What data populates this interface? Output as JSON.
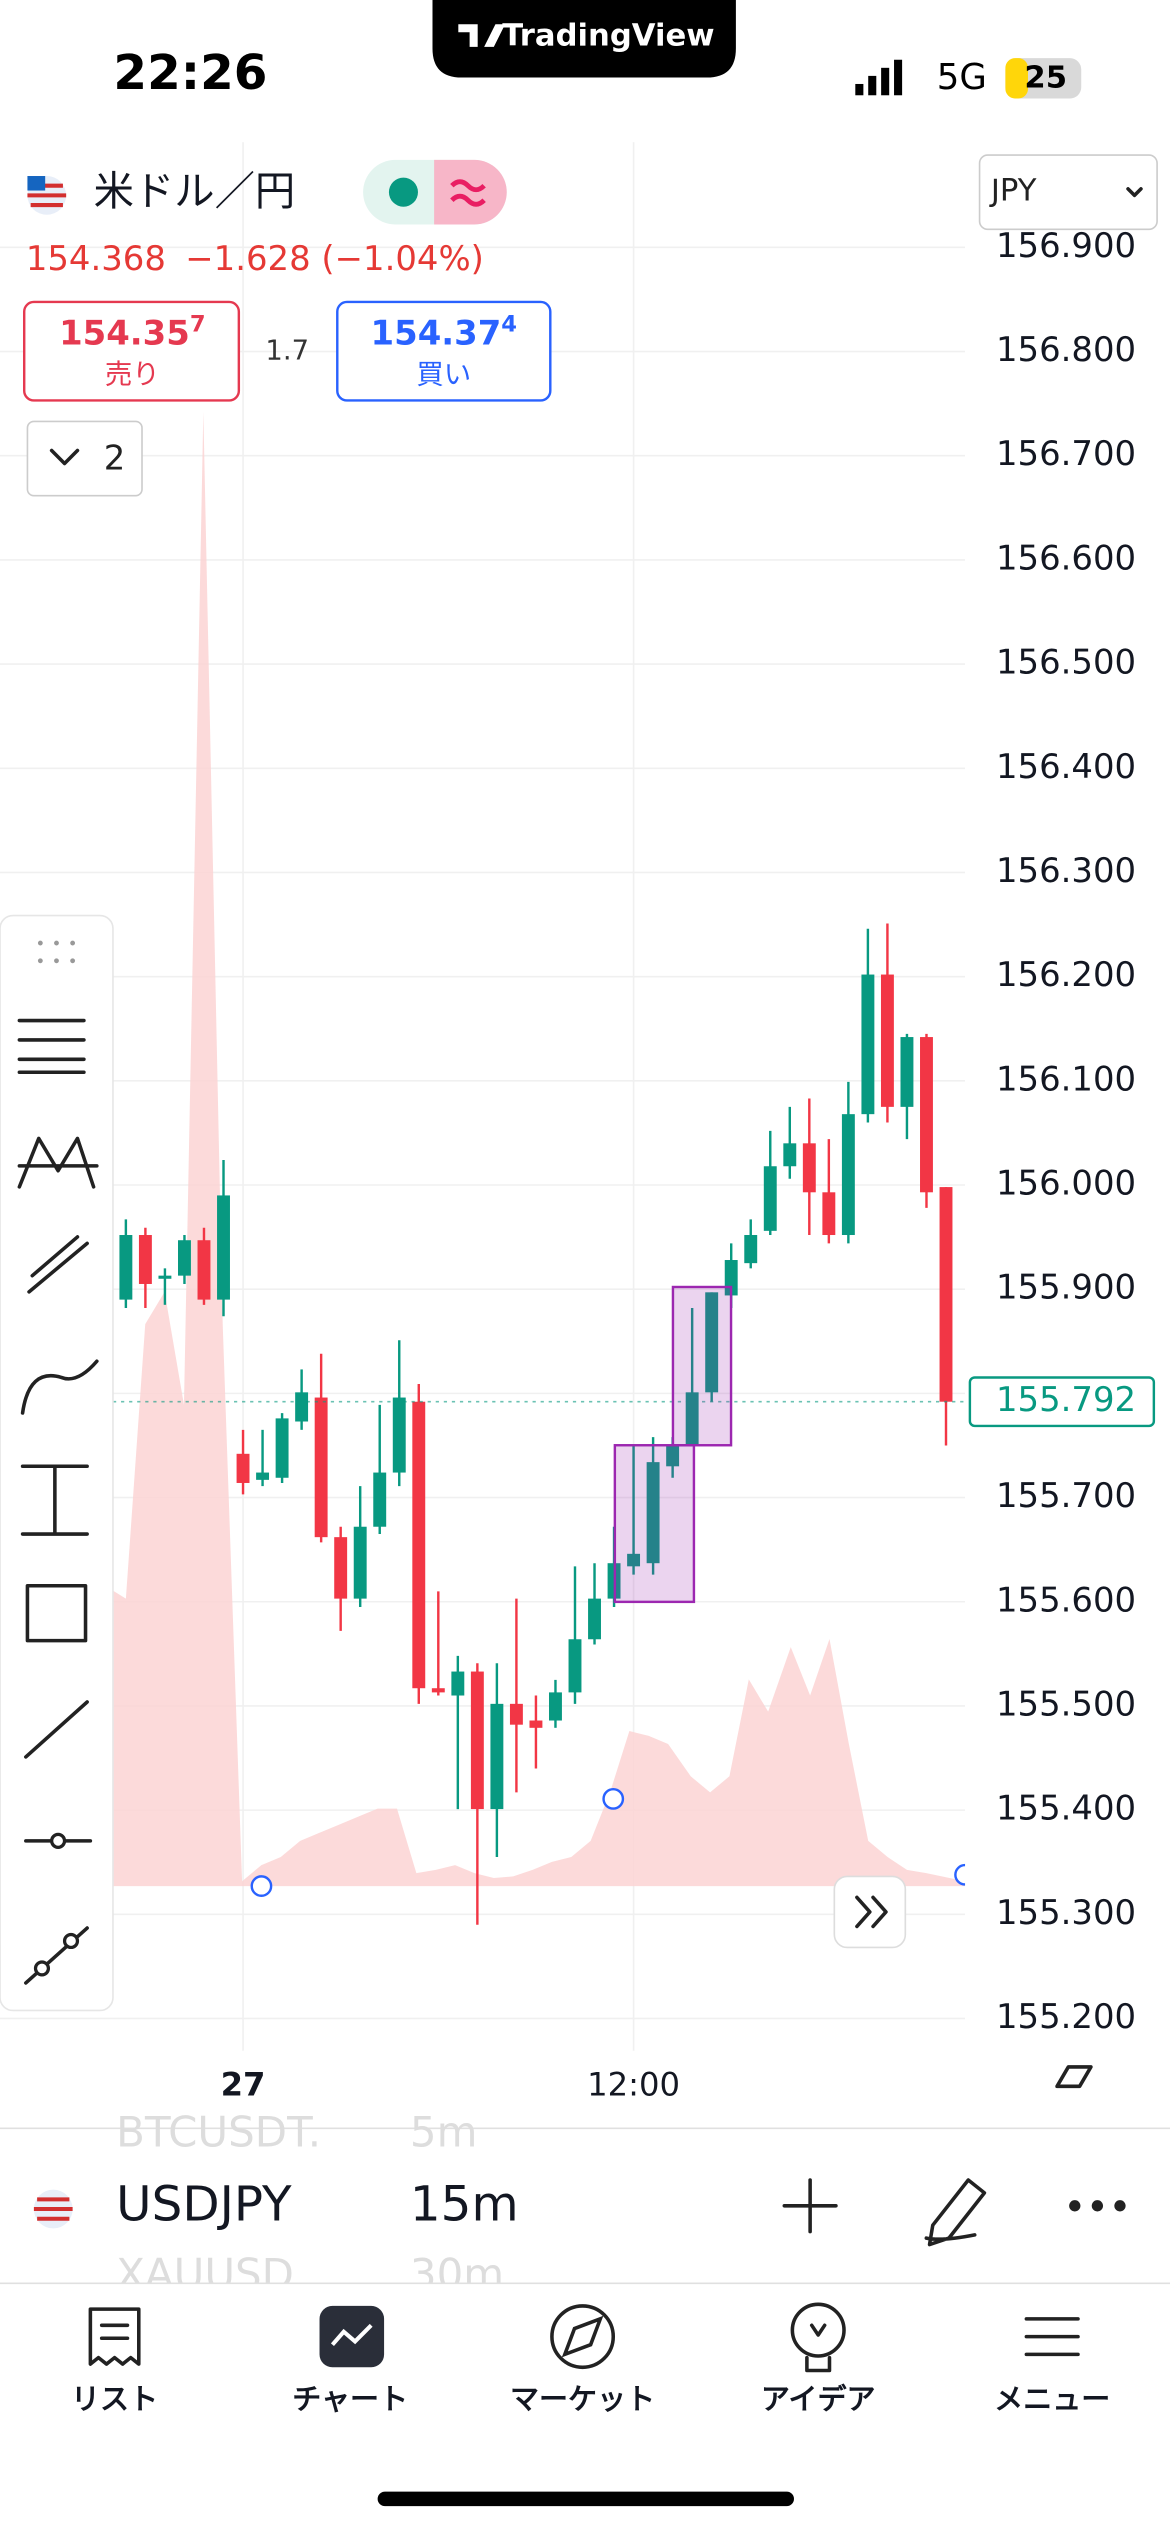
{
  "status_bar": {
    "time": "22:26",
    "network": "5G",
    "battery": "25"
  },
  "app_banner": "TradingView",
  "symbol_header": {
    "name": "米ドル／円",
    "price": "154.368",
    "change": "−1.628 (−1.04%)",
    "bid": {
      "price": "154.35",
      "pip": "7",
      "label": "売り"
    },
    "spread": "1.7",
    "ask": {
      "price": "154.37",
      "pip": "4",
      "label": "買い"
    },
    "indicator_count": "2"
  },
  "currency_select": "JPY",
  "chart_data": {
    "type": "candlestick",
    "categories": [
      null,
      null,
      null,
      null,
      null,
      null,
      "27",
      null,
      null,
      null,
      null,
      null,
      null,
      null,
      null,
      null,
      null,
      null,
      null,
      null,
      null,
      null,
      null,
      null,
      null,
      null,
      "12:00",
      null,
      null,
      null,
      null,
      null,
      null,
      null,
      null,
      null,
      null,
      null,
      null,
      null,
      null,
      null,
      null
    ],
    "open": [
      155.89,
      155.952,
      155.91,
      155.913,
      155.947,
      155.89,
      155.742,
      155.717,
      155.719,
      155.773,
      155.796,
      155.662,
      155.603,
      155.672,
      155.724,
      155.792,
      155.517,
      155.51,
      155.533,
      155.401,
      155.502,
      155.486,
      155.486,
      155.513,
      155.564,
      155.603,
      155.634,
      155.637,
      155.73,
      155.75,
      155.801,
      155.894,
      155.925,
      155.956,
      156.018,
      156.04,
      155.993,
      155.952,
      156.068,
      156.202,
      156.075,
      156.142,
      155.998
    ],
    "high": [
      155.967,
      155.959,
      155.92,
      155.952,
      155.959,
      156.024,
      155.765,
      155.765,
      155.781,
      155.823,
      155.838,
      155.672,
      155.711,
      155.789,
      155.851,
      155.809,
      155.61,
      155.548,
      155.541,
      155.541,
      155.603,
      155.51,
      155.525,
      155.634,
      155.637,
      155.672,
      155.75,
      155.758,
      155.758,
      155.882,
      155.897,
      155.944,
      155.967,
      156.052,
      156.075,
      156.083,
      156.044,
      156.099,
      156.246,
      156.251,
      156.145,
      156.145,
      155.998
    ],
    "low": [
      155.882,
      155.882,
      155.885,
      155.905,
      155.885,
      155.874,
      155.703,
      155.711,
      155.714,
      155.765,
      155.657,
      155.572,
      155.595,
      155.665,
      155.711,
      155.502,
      155.51,
      155.401,
      155.29,
      155.355,
      155.417,
      155.44,
      155.479,
      155.502,
      155.559,
      155.595,
      155.626,
      155.626,
      155.719,
      155.75,
      155.792,
      155.882,
      155.92,
      155.952,
      156.006,
      155.952,
      155.944,
      155.944,
      156.06,
      156.06,
      156.044,
      155.978,
      155.75
    ],
    "close": [
      155.952,
      155.905,
      155.913,
      155.947,
      155.89,
      155.99,
      155.714,
      155.724,
      155.776,
      155.801,
      155.662,
      155.603,
      155.672,
      155.724,
      155.796,
      155.517,
      155.513,
      155.533,
      155.401,
      155.502,
      155.482,
      155.479,
      155.513,
      155.564,
      155.603,
      155.637,
      155.646,
      155.734,
      155.75,
      155.801,
      155.897,
      155.928,
      155.952,
      156.018,
      156.04,
      155.993,
      155.952,
      156.068,
      156.202,
      156.075,
      156.142,
      155.993,
      155.792
    ],
    "up_color": "#089981",
    "down_color": "#f23645",
    "ylim": [
      155.169,
      157.001
    ],
    "yticks": [
      {
        "value": 156.9,
        "label": "156.900"
      },
      {
        "value": 156.8,
        "label": "156.800"
      },
      {
        "value": 156.7,
        "label": "156.700"
      },
      {
        "value": 156.6,
        "label": "156.600"
      },
      {
        "value": 156.5,
        "label": "156.500"
      },
      {
        "value": 156.4,
        "label": "156.400"
      },
      {
        "value": 156.3,
        "label": "156.300"
      },
      {
        "value": 156.2,
        "label": "156.200"
      },
      {
        "value": 156.1,
        "label": "156.100"
      },
      {
        "value": 156.0,
        "label": "156.000"
      },
      {
        "value": 155.9,
        "label": "155.900"
      },
      {
        "value": 155.8,
        "label": "155.800"
      },
      {
        "value": 155.7,
        "label": "155.700"
      },
      {
        "value": 155.6,
        "label": "155.600"
      },
      {
        "value": 155.5,
        "label": "155.500"
      },
      {
        "value": 155.4,
        "label": "155.400"
      },
      {
        "value": 155.3,
        "label": "155.300"
      },
      {
        "value": 155.2,
        "label": "155.200"
      }
    ],
    "grid": true,
    "last_price": 155.792
  },
  "watchlist": [
    {
      "symbol": "BTCUSDT.",
      "interval": "5m"
    },
    {
      "symbol": "USDJPY",
      "interval": "15m"
    },
    {
      "symbol": "XAUUSD",
      "interval": "30m"
    }
  ],
  "tabs": [
    "リスト",
    "チャート",
    "マーケット",
    "アイデア",
    "メニュー"
  ]
}
